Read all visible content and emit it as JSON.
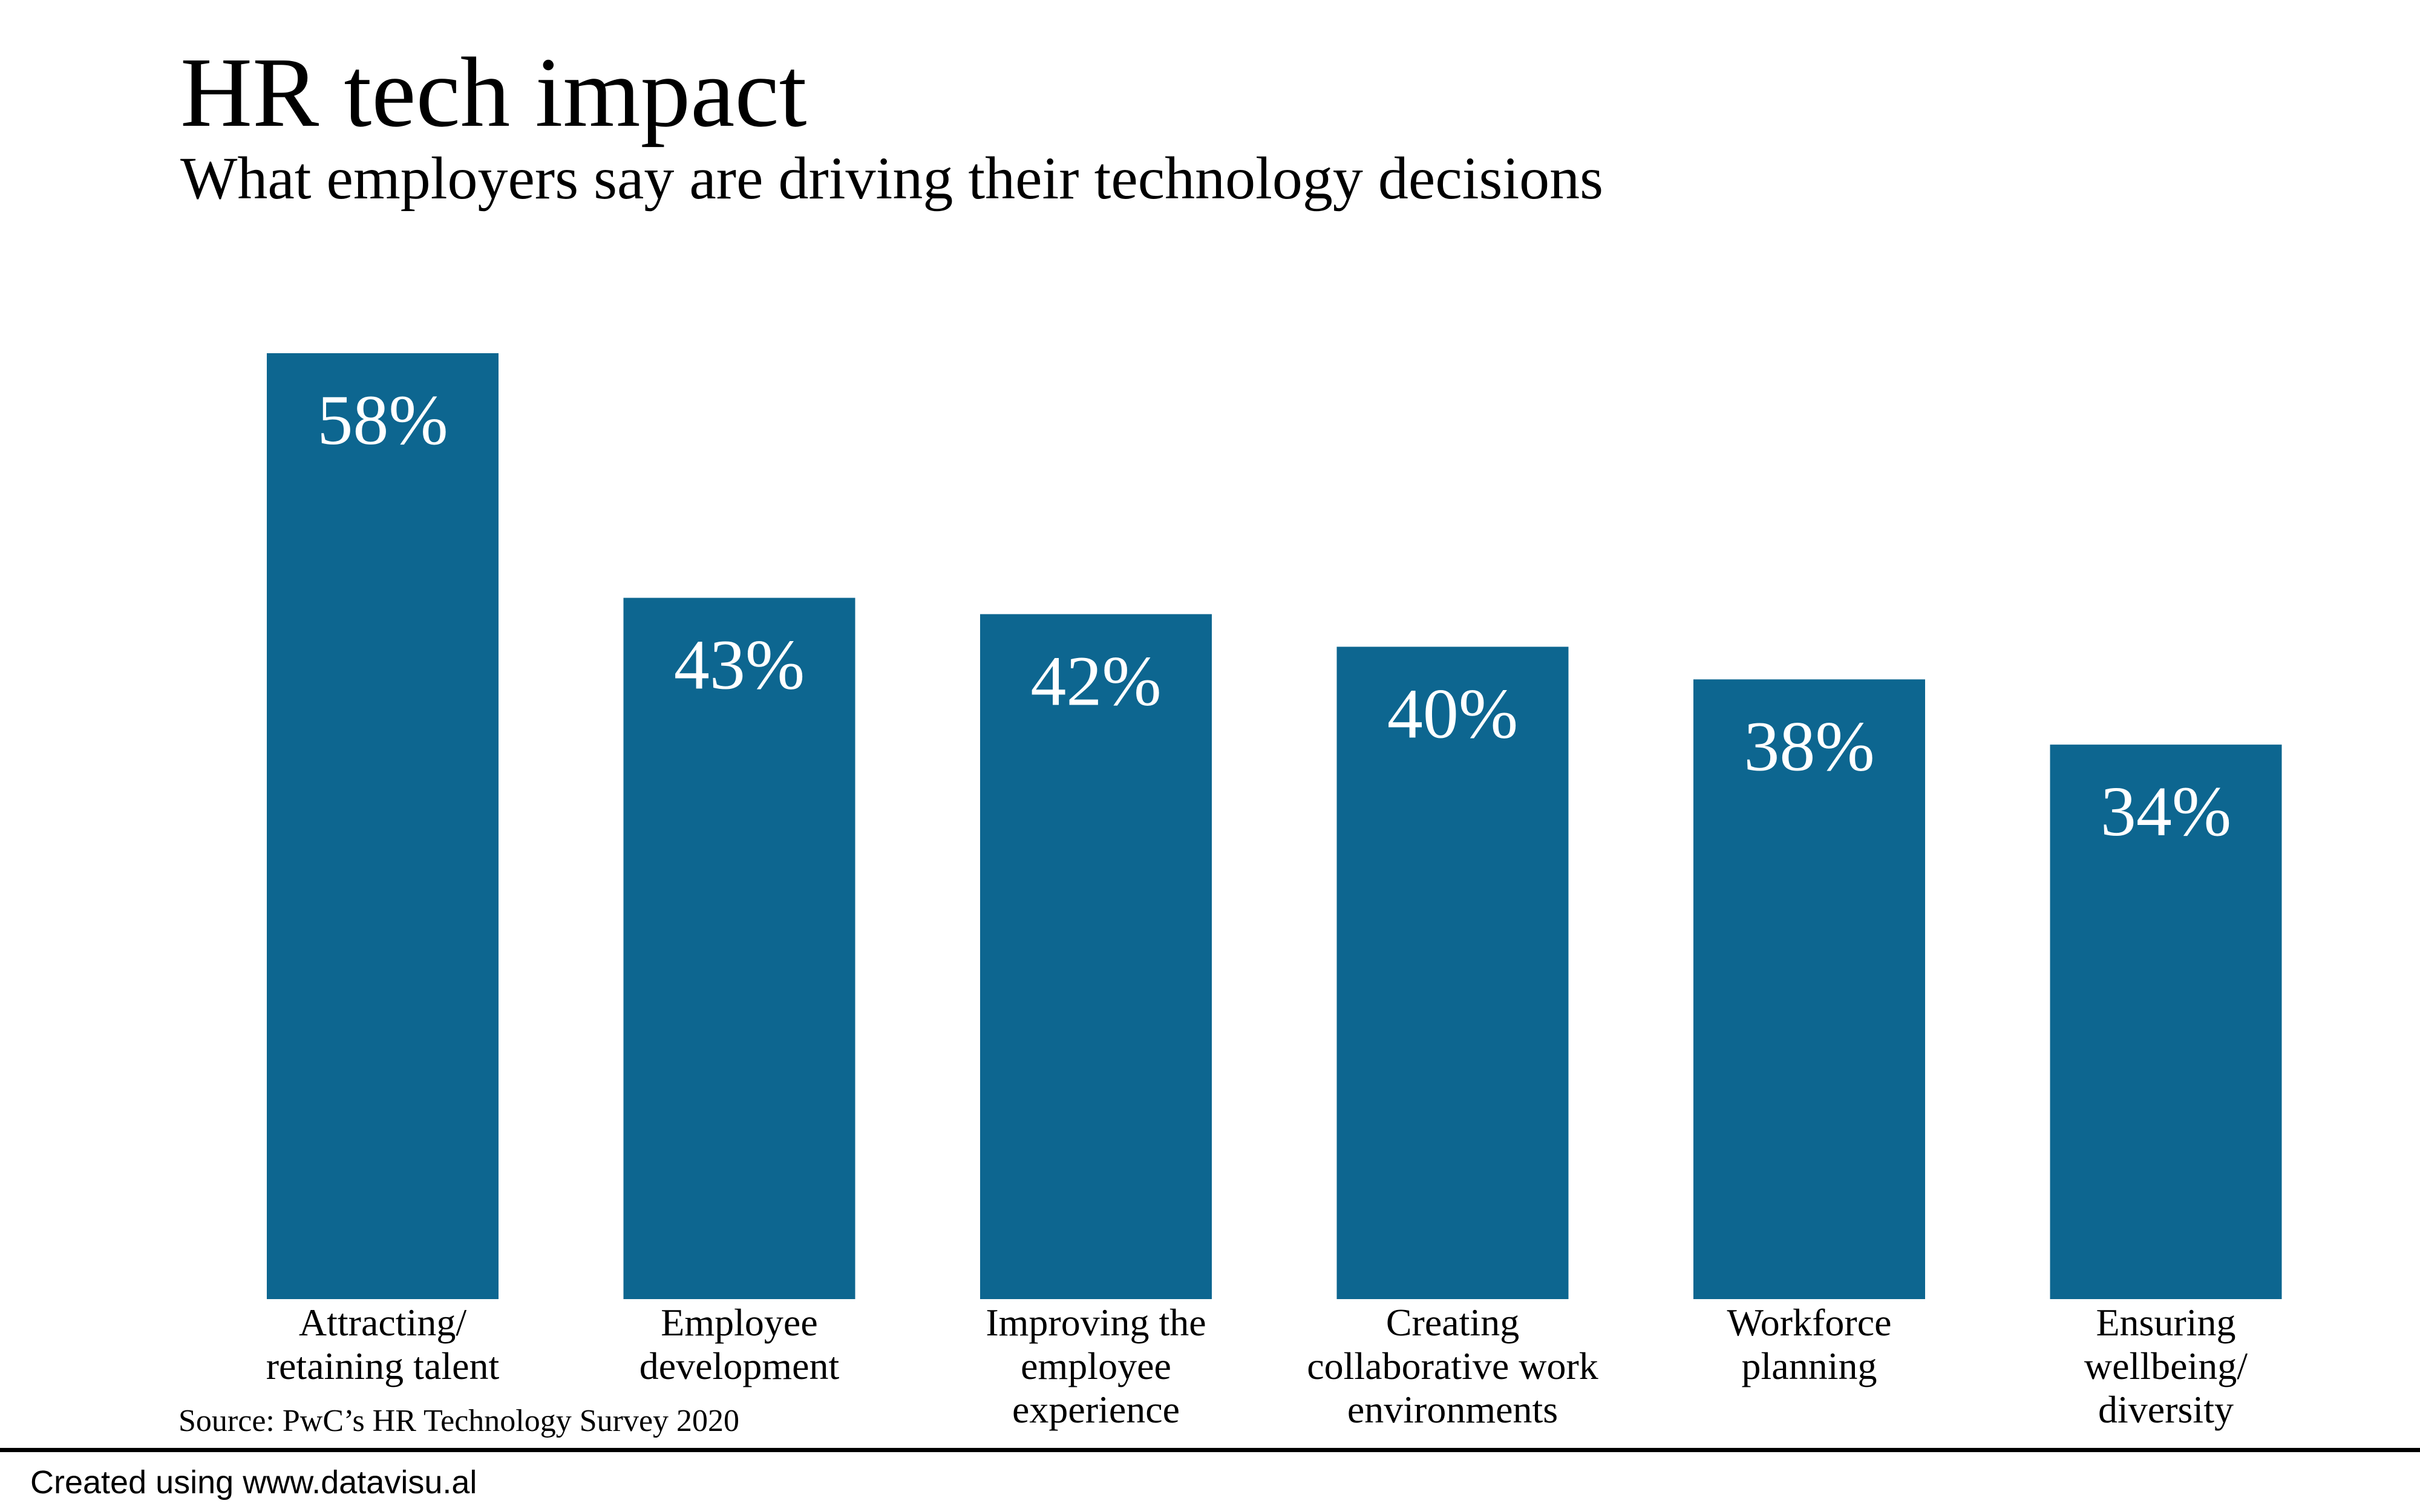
{
  "chart_data": {
    "type": "bar",
    "title": "HR tech impact",
    "subtitle": "What employers say are driving their technology decisions",
    "categories": [
      [
        "Attracting/",
        "retaining talent"
      ],
      [
        "Employee",
        "development"
      ],
      [
        "Improving the",
        "employee",
        "experience"
      ],
      [
        "Creating",
        "collaborative work",
        "environments"
      ],
      [
        "Workforce",
        "planning"
      ],
      [
        "Ensuring",
        "wellbeing/",
        "diversity"
      ]
    ],
    "values": [
      58,
      43,
      42,
      40,
      38,
      34
    ],
    "value_labels": [
      "58%",
      "43%",
      "42%",
      "40%",
      "38%",
      "34%"
    ],
    "ylim": [
      0,
      58
    ],
    "grid": false,
    "bar_color": "#0d6690",
    "label_color": "#ffffff"
  },
  "source": "Source: PwC’s HR Technology Survey 2020",
  "footer": "Created using www.datavisu.al"
}
